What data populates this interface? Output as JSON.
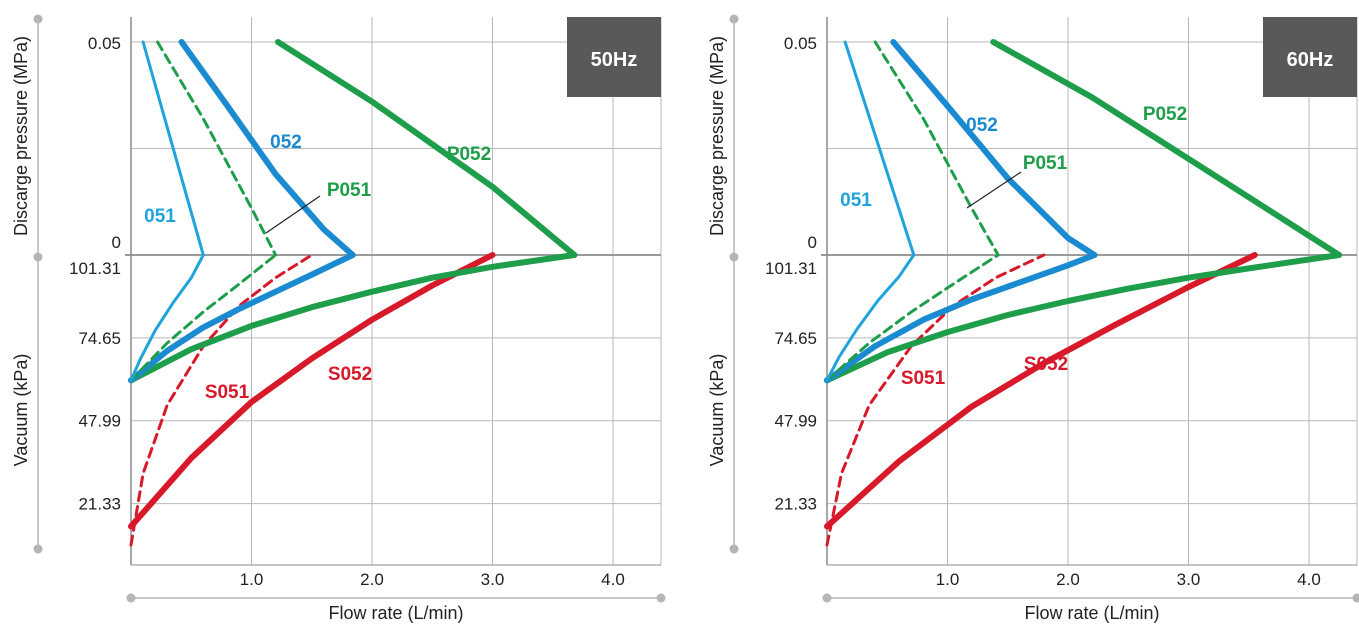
{
  "chart_data": [
    {
      "type": "line",
      "badge": "50Hz",
      "xlabel": "Flow rate (L/min)",
      "ylabel_pressure": "Discarge pressure (MPa)",
      "ylabel_vacuum": "Vacuum (kPa)",
      "x_ticks": [
        "1.0",
        "2.0",
        "3.0",
        "4.0"
      ],
      "xlim": [
        0,
        4.4
      ],
      "pressure_ticks": [
        "0.05",
        "0"
      ],
      "pressure_lim": [
        0,
        0.05
      ],
      "vacuum_ticks": [
        "101.31",
        "74.65",
        "47.99",
        "21.33"
      ],
      "vacuum_lim": [
        8.0,
        101.31
      ],
      "grid": true,
      "colors": {
        "051": "#1fa3dc",
        "052": "#1b8bd1",
        "P051": "#1e9e4a",
        "P052": "#1e9e4a",
        "S051": "#d7192a",
        "S052": "#d7192a",
        "badge": "#595959",
        "grid": "#b9b9b9"
      },
      "series": [
        {
          "name": "051",
          "region": "pressure",
          "x": [
            0.1,
            0.6
          ],
          "y": [
            0.05,
            0.0
          ]
        },
        {
          "name": "051",
          "region": "vacuum",
          "x": [
            0.0,
            0.08,
            0.2,
            0.35,
            0.5,
            0.6
          ],
          "y": [
            61.0,
            68.0,
            77.0,
            86.0,
            94.0,
            101.31
          ]
        },
        {
          "name": "052",
          "region": "pressure",
          "x": [
            0.42,
            0.8,
            1.2,
            1.6,
            1.84
          ],
          "y": [
            0.05,
            0.035,
            0.019,
            0.006,
            0.0
          ]
        },
        {
          "name": "052",
          "region": "vacuum",
          "x": [
            0.0,
            0.3,
            0.6,
            0.9,
            1.2,
            1.5,
            1.84
          ],
          "y": [
            61.0,
            70.5,
            78.0,
            84.0,
            89.5,
            95.0,
            101.31
          ]
        },
        {
          "name": "P051",
          "region": "pressure",
          "x": [
            0.22,
            0.6,
            1.0,
            1.2
          ],
          "y": [
            0.05,
            0.032,
            0.011,
            0.0
          ]
        },
        {
          "name": "P051",
          "region": "vacuum",
          "x": [
            0.0,
            0.3,
            0.6,
            0.9,
            1.2
          ],
          "y": [
            61.0,
            73.0,
            83.0,
            92.0,
            101.31
          ]
        },
        {
          "name": "P052",
          "region": "pressure",
          "x": [
            1.22,
            2.0,
            3.0,
            3.68
          ],
          "y": [
            0.05,
            0.036,
            0.016,
            0.0
          ]
        },
        {
          "name": "P052",
          "region": "vacuum",
          "x": [
            0.0,
            0.5,
            1.0,
            1.5,
            2.0,
            2.5,
            3.0,
            3.68
          ],
          "y": [
            61.0,
            71.0,
            78.5,
            84.5,
            89.5,
            94.0,
            97.5,
            101.31
          ]
        },
        {
          "name": "S051",
          "region": "vacuum",
          "x": [
            0.0,
            0.1,
            0.3,
            0.6,
            0.9,
            1.2,
            1.5
          ],
          "y": [
            8.0,
            31.0,
            53.0,
            72.0,
            85.0,
            94.0,
            101.31
          ]
        },
        {
          "name": "S052",
          "region": "vacuum",
          "x": [
            0.0,
            0.5,
            1.0,
            1.5,
            2.0,
            2.5,
            3.0
          ],
          "y": [
            14.0,
            36.0,
            54.0,
            68.0,
            80.5,
            91.5,
            101.31
          ]
        }
      ],
      "labels": [
        {
          "text": "051",
          "series": "051"
        },
        {
          "text": "052",
          "series": "052"
        },
        {
          "text": "P051",
          "series": "P051"
        },
        {
          "text": "P052",
          "series": "P052"
        },
        {
          "text": "S051",
          "series": "S051"
        },
        {
          "text": "S052",
          "series": "S052"
        }
      ]
    },
    {
      "type": "line",
      "badge": "60Hz",
      "xlabel": "Flow rate (L/min)",
      "ylabel_pressure": "Discarge pressure (MPa)",
      "ylabel_vacuum": "Vacuum (kPa)",
      "x_ticks": [
        "1.0",
        "2.0",
        "3.0",
        "4.0"
      ],
      "xlim": [
        0,
        4.4
      ],
      "pressure_ticks": [
        "0.05",
        "0"
      ],
      "pressure_lim": [
        0,
        0.05
      ],
      "vacuum_ticks": [
        "101.31",
        "74.65",
        "47.99",
        "21.33"
      ],
      "vacuum_lim": [
        8.0,
        101.31
      ],
      "grid": true,
      "colors": {
        "051": "#1fa3dc",
        "052": "#1b8bd1",
        "P051": "#1e9e4a",
        "P052": "#1e9e4a",
        "S051": "#d7192a",
        "S052": "#d7192a",
        "badge": "#595959",
        "grid": "#b9b9b9"
      },
      "series": [
        {
          "name": "051",
          "region": "pressure",
          "x": [
            0.15,
            0.72
          ],
          "y": [
            0.05,
            0.0
          ]
        },
        {
          "name": "051",
          "region": "vacuum",
          "x": [
            0.0,
            0.1,
            0.25,
            0.42,
            0.6,
            0.72
          ],
          "y": [
            61.0,
            68.5,
            77.5,
            86.5,
            94.5,
            101.31
          ]
        },
        {
          "name": "052",
          "region": "pressure",
          "x": [
            0.55,
            1.0,
            1.5,
            2.0,
            2.22
          ],
          "y": [
            0.05,
            0.035,
            0.018,
            0.004,
            0.0
          ]
        },
        {
          "name": "052",
          "region": "vacuum",
          "x": [
            0.0,
            0.4,
            0.8,
            1.2,
            1.6,
            2.0,
            2.22
          ],
          "y": [
            61.0,
            72.0,
            80.5,
            87.0,
            92.5,
            98.0,
            101.31
          ]
        },
        {
          "name": "P051",
          "region": "pressure",
          "x": [
            0.4,
            0.8,
            1.2,
            1.42
          ],
          "y": [
            0.05,
            0.032,
            0.011,
            0.0
          ]
        },
        {
          "name": "P051",
          "region": "vacuum",
          "x": [
            0.0,
            0.35,
            0.7,
            1.05,
            1.42
          ],
          "y": [
            61.0,
            73.0,
            83.0,
            92.0,
            101.31
          ]
        },
        {
          "name": "P052",
          "region": "pressure",
          "x": [
            1.38,
            2.2,
            3.2,
            4.25
          ],
          "y": [
            0.05,
            0.037,
            0.019,
            0.0
          ]
        },
        {
          "name": "P052",
          "region": "vacuum",
          "x": [
            0.0,
            0.5,
            1.0,
            1.5,
            2.0,
            2.5,
            3.0,
            3.5,
            4.25
          ],
          "y": [
            61.0,
            70.0,
            76.5,
            82.0,
            86.5,
            90.5,
            94.0,
            97.0,
            101.31
          ]
        },
        {
          "name": "S051",
          "region": "vacuum",
          "x": [
            0.0,
            0.12,
            0.35,
            0.7,
            1.05,
            1.4,
            1.8
          ],
          "y": [
            8.0,
            31.0,
            53.0,
            72.0,
            85.0,
            94.0,
            101.31
          ]
        },
        {
          "name": "S052",
          "region": "vacuum",
          "x": [
            0.0,
            0.6,
            1.2,
            1.8,
            2.4,
            3.0,
            3.55
          ],
          "y": [
            14.0,
            35.0,
            52.5,
            66.5,
            79.0,
            91.0,
            101.31
          ]
        }
      ],
      "labels": [
        {
          "text": "051",
          "series": "051"
        },
        {
          "text": "052",
          "series": "052"
        },
        {
          "text": "P051",
          "series": "P051"
        },
        {
          "text": "P052",
          "series": "P052"
        },
        {
          "text": "S051",
          "series": "S051"
        },
        {
          "text": "S052",
          "series": "S052"
        }
      ]
    }
  ]
}
